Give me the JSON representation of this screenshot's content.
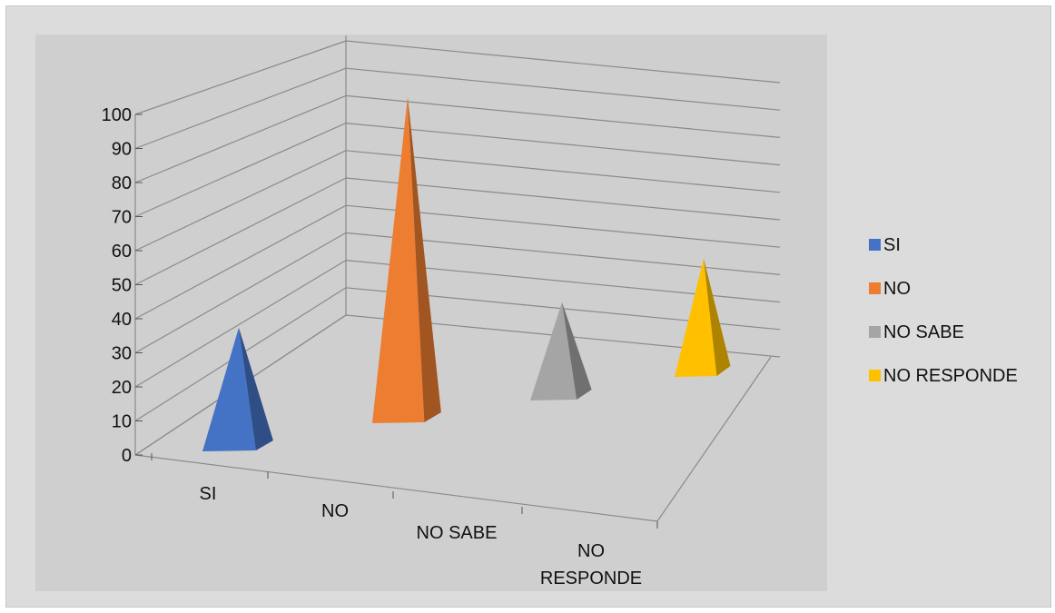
{
  "chart_data": {
    "type": "bar",
    "shape": "3d-pyramid",
    "categories": [
      "SI",
      "NO",
      "NO SABE",
      "NO RESPONDE"
    ],
    "category_labels": [
      [
        "SI"
      ],
      [
        "NO"
      ],
      [
        "NO SABE"
      ],
      [
        "NO",
        "RESPONDE"
      ]
    ],
    "values": [
      35,
      95,
      28,
      35
    ],
    "series": [
      {
        "name": "SI",
        "value": 35,
        "color": "#4472c4"
      },
      {
        "name": "NO",
        "value": 95,
        "color": "#ed7d31"
      },
      {
        "name": "NO SABE",
        "value": 28,
        "color": "#a5a5a5"
      },
      {
        "name": "NO RESPONDE",
        "value": 35,
        "color": "#ffc000"
      }
    ],
    "ylim": [
      0,
      100
    ],
    "yticks": [
      "0",
      "10",
      "20",
      "30",
      "40",
      "50",
      "60",
      "70",
      "80",
      "90",
      "100"
    ],
    "grid": true,
    "legend_position": "right",
    "title": "",
    "xlabel": "",
    "ylabel": ""
  }
}
